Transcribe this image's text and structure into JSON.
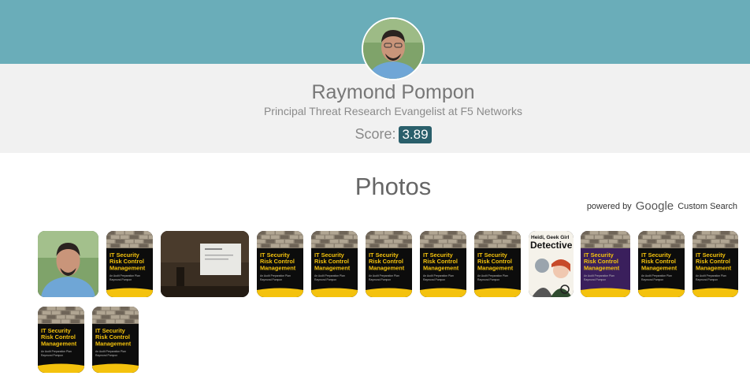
{
  "profile": {
    "name": "Raymond Pompon",
    "title": "Principal Threat Research Evangelist at F5 Networks",
    "score_label": "Score:",
    "score_value": "3.89"
  },
  "photos": {
    "heading": "Photos",
    "powered_by": "powered by",
    "google": "Google",
    "custom_search": "Custom Search",
    "items": [
      {
        "kind": "portrait"
      },
      {
        "kind": "book"
      },
      {
        "kind": "talk"
      },
      {
        "kind": "book"
      },
      {
        "kind": "book"
      },
      {
        "kind": "book"
      },
      {
        "kind": "book"
      },
      {
        "kind": "book"
      },
      {
        "kind": "comic",
        "text": "Heidi, Geek Girl Detective"
      },
      {
        "kind": "book-purple"
      },
      {
        "kind": "book"
      },
      {
        "kind": "book"
      },
      {
        "kind": "book"
      },
      {
        "kind": "book"
      }
    ],
    "book_title_lines": [
      "IT Security",
      "Risk Control",
      "Management"
    ],
    "book_subtitle": "An Audit Preparation Plan",
    "book_author": "Raymond Pompon"
  },
  "colors": {
    "header_teal": "#6aadb9",
    "score_badge": "#2a5f6b",
    "book_yellow": "#f4c20d"
  }
}
